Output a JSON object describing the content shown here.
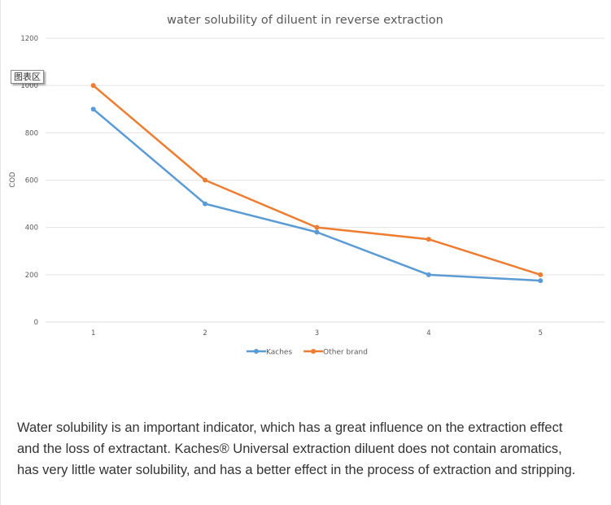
{
  "chart_data": {
    "type": "line",
    "title": "water solubility of diluent in reverse extraction",
    "xlabel": "",
    "ylabel": "COD",
    "categories": [
      "1",
      "2",
      "3",
      "4",
      "5"
    ],
    "ylim": [
      0,
      1200
    ],
    "yticks": [
      "0",
      "200",
      "400",
      "600",
      "800",
      "1000",
      "1200"
    ],
    "grid": true,
    "legend_position": "bottom",
    "series": [
      {
        "name": "Kaches",
        "color": "#5b9bd5",
        "values": [
          900,
          500,
          380,
          200,
          175
        ]
      },
      {
        "name": "Other brand",
        "color": "#ed7d31",
        "values": [
          1000,
          600,
          400,
          350,
          200
        ]
      }
    ]
  },
  "tooltip": {
    "text": "图表区"
  },
  "description": "Water solubility is an important indicator, which has a great influence on the extraction effect and the loss of extractant. Kaches® Universal extraction diluent does not contain aromatics, has very little water solubility, and has a better effect in the process of extraction and stripping."
}
